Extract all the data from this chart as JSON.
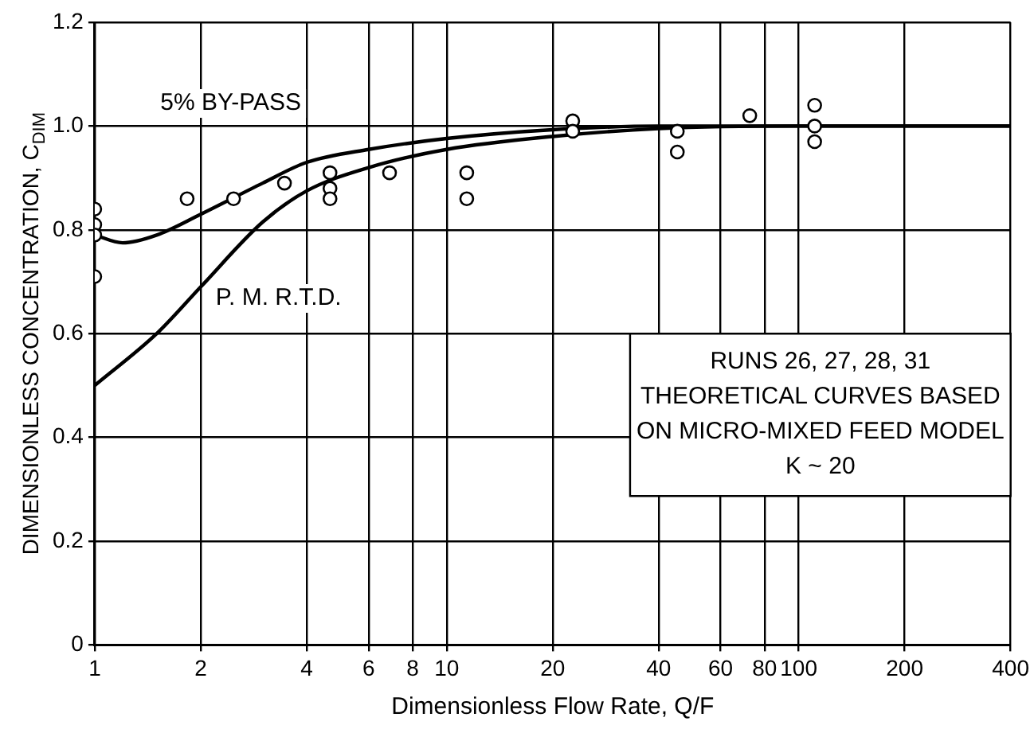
{
  "chart_data": {
    "type": "scatter",
    "xlabel": "Dimensionless Flow Rate, Q/F",
    "ylabel": "DIMENSIONLESS CONCENTRATION, C$_{DIM}$",
    "log": "x",
    "xlim": [
      1,
      400
    ],
    "ylim": [
      0,
      1.2
    ],
    "xticks": [
      1,
      2,
      4,
      6,
      8,
      10,
      20,
      40,
      60,
      80,
      100,
      200,
      400
    ],
    "yticks": [
      0,
      {
        "value": 0.2,
        "label": "0.2"
      },
      {
        "value": 0.4,
        "label": "0.4"
      },
      {
        "value": 0.6,
        "label": "0.6"
      },
      {
        "value": 0.8,
        "label": "0.8"
      },
      {
        "value": 1,
        "label": "1.0"
      },
      {
        "value": 1.2,
        "label": "1.2"
      }
    ],
    "grid": true,
    "legend": false,
    "series": [
      {
        "type": "line",
        "name": "5% BY-PASS",
        "color": "#000000",
        "marker": "none",
        "line_style": "solid",
        "x": [
          1,
          1.2,
          1.5,
          2,
          3,
          4,
          6,
          10,
          20,
          40,
          100,
          400
        ],
        "values": [
          0.79,
          0.775,
          0.79,
          0.83,
          0.89,
          0.93,
          0.955,
          0.976,
          0.993,
          1.0,
          1.0,
          1.0
        ]
      },
      {
        "type": "line",
        "name": "P. M. R.T.D.",
        "color": "#000000",
        "marker": "none",
        "line_style": "solid",
        "x": [
          1,
          1.5,
          2,
          3,
          4,
          6,
          10,
          20,
          40,
          100,
          400
        ],
        "values": [
          0.5,
          0.6,
          0.69,
          0.815,
          0.875,
          0.92,
          0.955,
          0.98,
          0.995,
          1.0,
          1.0
        ]
      },
      {
        "type": "scatter",
        "color": "#000000",
        "marker": "circle",
        "x": [
          1,
          1,
          1,
          1,
          1.83,
          2.48,
          3.46,
          4.66,
          4.66,
          4.66,
          6.88,
          11.4,
          11.4,
          22.8,
          22.8,
          45.2,
          45.2,
          72.6,
          111,
          111,
          111
        ],
        "values": [
          0.84,
          0.81,
          0.79,
          0.71,
          0.86,
          0.86,
          0.89,
          0.91,
          0.88,
          0.86,
          0.91,
          0.91,
          0.86,
          1.01,
          0.99,
          0.99,
          0.95,
          1.02,
          1.04,
          1.0,
          0.97
        ]
      }
    ],
    "annotations": [
      "RUNS 26, 27, 28, 31\nTHEORETICAL CURVES BASED\nON MICRO-MIXED FEED MODEL\nK ~ 20"
    ]
  }
}
